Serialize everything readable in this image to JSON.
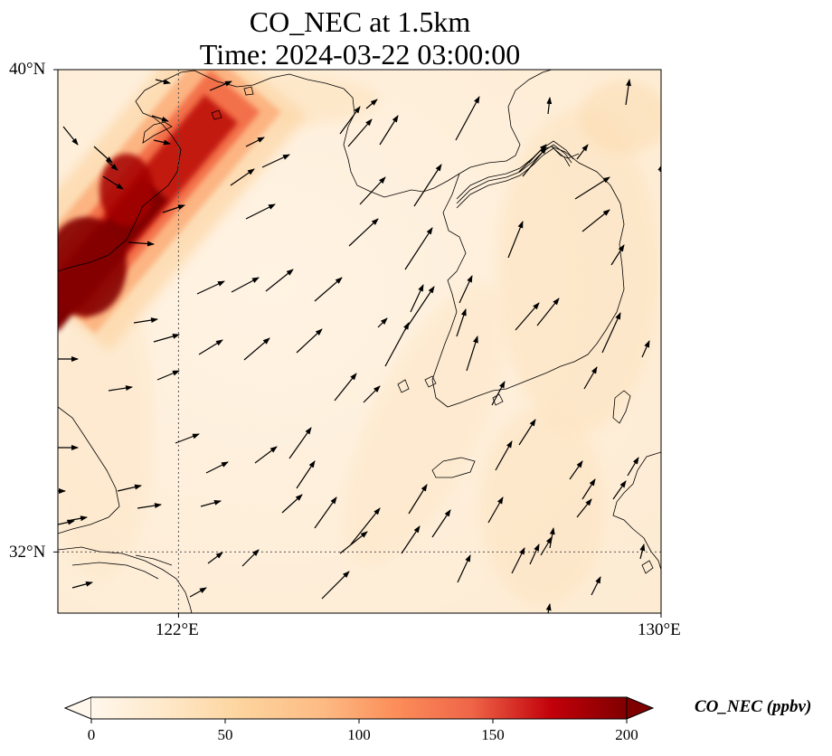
{
  "title": {
    "line1": "CO_NEC at 1.5km",
    "line2": "Time: 2024-03-22 03:00:00"
  },
  "map": {
    "variable": "CO_NEC",
    "level": "1.5km",
    "time": "2024-03-22 03:00:00",
    "lon_range": [
      120.4,
      130
    ],
    "lat_range": [
      31.2,
      40
    ],
    "lat_ticks": [
      {
        "value": 40,
        "label": "40°N"
      },
      {
        "value": 32,
        "label": "32°N"
      }
    ],
    "lon_ticks": [
      {
        "value": 122,
        "label": "122°E"
      },
      {
        "value": 130,
        "label": "130°E"
      }
    ],
    "gridlines": "dotted at 122°E and 32°N",
    "plume": "high CO_NEC band (150-200 ppbv) along the northwest edge, oriented southwest-northeast",
    "wind_vectors": "mostly southwesterly to westerly arrows across the domain"
  },
  "colorbar": {
    "label": "CO_NEC (ppbv)",
    "min": 0,
    "max": 200,
    "ticks": [
      {
        "value": 0,
        "label": "0"
      },
      {
        "value": 50,
        "label": "50"
      },
      {
        "value": 100,
        "label": "100"
      },
      {
        "value": 150,
        "label": "150"
      },
      {
        "value": 200,
        "label": "200"
      }
    ],
    "extend": "both",
    "colormap": "OrRd",
    "colors": [
      "#fff7ec",
      "#fdd49e",
      "#fc8d59",
      "#d7301f",
      "#7f0000"
    ]
  }
}
